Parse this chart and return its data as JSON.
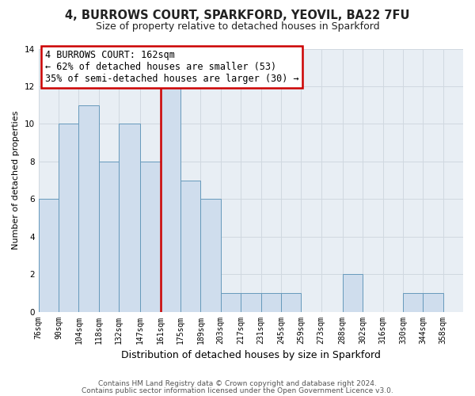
{
  "title_line1": "4, BURROWS COURT, SPARKFORD, YEOVIL, BA22 7FU",
  "title_line2": "Size of property relative to detached houses in Sparkford",
  "xlabel": "Distribution of detached houses by size in Sparkford",
  "ylabel": "Number of detached properties",
  "bar_edges": [
    76,
    90,
    104,
    118,
    132,
    147,
    161,
    175,
    189,
    203,
    217,
    231,
    245,
    259,
    273,
    288,
    302,
    316,
    330,
    344,
    358
  ],
  "bar_heights": [
    6,
    10,
    11,
    8,
    10,
    8,
    12,
    7,
    6,
    1,
    1,
    1,
    1,
    0,
    0,
    2,
    0,
    0,
    1,
    1
  ],
  "tick_labels": [
    "76sqm",
    "90sqm",
    "104sqm",
    "118sqm",
    "132sqm",
    "147sqm",
    "161sqm",
    "175sqm",
    "189sqm",
    "203sqm",
    "217sqm",
    "231sqm",
    "245sqm",
    "259sqm",
    "273sqm",
    "288sqm",
    "302sqm",
    "316sqm",
    "330sqm",
    "344sqm",
    "358sqm"
  ],
  "bar_color": "#cfdded",
  "bar_edge_color": "#6699bb",
  "highlight_x": 161,
  "xlim": [
    76,
    372
  ],
  "ylim": [
    0,
    14
  ],
  "yticks": [
    0,
    2,
    4,
    6,
    8,
    10,
    12,
    14
  ],
  "annotation_title": "4 BURROWS COURT: 162sqm",
  "annotation_line2": "← 62% of detached houses are smaller (53)",
  "annotation_line3": "35% of semi-detached houses are larger (30) →",
  "annotation_box_facecolor": "#ffffff",
  "annotation_box_edgecolor": "#cc0000",
  "highlight_line_color": "#cc0000",
  "footer_line1": "Contains HM Land Registry data © Crown copyright and database right 2024.",
  "footer_line2": "Contains public sector information licensed under the Open Government Licence v3.0.",
  "background_color": "#ffffff",
  "plot_background_color": "#e8eef4",
  "grid_color": "#d0d8e0",
  "title1_fontsize": 10.5,
  "title2_fontsize": 9,
  "ylabel_fontsize": 8,
  "xlabel_fontsize": 9,
  "tick_fontsize": 7,
  "annotation_fontsize": 8.5,
  "footer_fontsize": 6.5
}
